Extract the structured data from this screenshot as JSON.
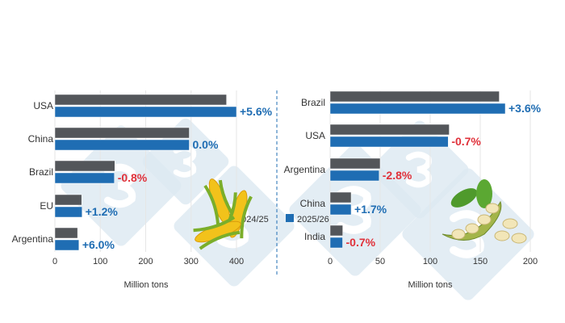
{
  "chart_data": [
    {
      "type": "bar",
      "orientation": "horizontal",
      "categories": [
        "USA",
        "China",
        "Brazil",
        "EU",
        "Argentina"
      ],
      "series": [
        {
          "name": "2024/25",
          "values": [
            378,
            296,
            132,
            59,
            50
          ],
          "color": "#53565a"
        },
        {
          "name": "2025/26",
          "values": [
            400,
            296,
            131,
            60,
            53
          ],
          "color": "#1f6db3"
        }
      ],
      "annotations": [
        "+5.6%",
        "0.0%",
        "-0.8%",
        "+1.2%",
        "+6.0%"
      ],
      "xlabel": "Million tons",
      "xlim": [
        0,
        480
      ],
      "xticks": [
        0,
        100,
        200,
        300,
        400
      ],
      "grid": true,
      "image": "corn-illustration"
    },
    {
      "type": "bar",
      "orientation": "horizontal",
      "categories": [
        "Brazil",
        "USA",
        "Argentina",
        "China",
        "India"
      ],
      "series": [
        {
          "name": "2024/25",
          "values": [
            169,
            119,
            50,
            21,
            12.6
          ],
          "color": "#53565a"
        },
        {
          "name": "2025/26",
          "values": [
            175,
            118,
            49,
            21,
            12.5
          ],
          "color": "#1f6db3"
        }
      ],
      "annotations": [
        "+3.6%",
        "-0.7%",
        "-2.8%",
        "+1.7%",
        "-0.7%"
      ],
      "xlabel": "Million tons",
      "xlim": [
        0,
        210
      ],
      "xticks": [
        0,
        50,
        100,
        150,
        200
      ],
      "grid": true,
      "image": "soybean-illustration"
    }
  ],
  "legend": {
    "position": "top",
    "items": [
      "2024/25",
      "2025/26"
    ]
  },
  "colors": {
    "positive": "#1f6db3",
    "negative": "#e0313a",
    "watermark": "#dce8f1"
  }
}
